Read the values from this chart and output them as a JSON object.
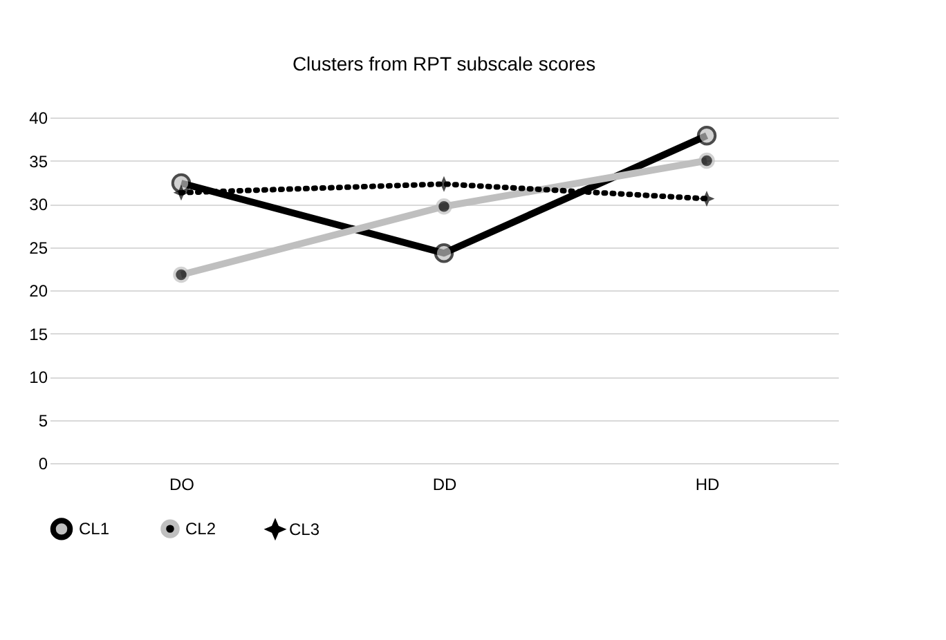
{
  "chart_data": {
    "type": "line",
    "title": "Clusters from RPT subscale scores",
    "categories": [
      "DO",
      "DD",
      "HD"
    ],
    "series": [
      {
        "name": "CL1",
        "color": "#000000",
        "values": [
          32.4,
          24.3,
          37.9
        ],
        "marker": "circle",
        "line_style": "solid"
      },
      {
        "name": "CL2",
        "color": "#bfbfbf",
        "values": [
          21.8,
          29.7,
          35.0
        ],
        "marker": "circle",
        "line_style": "solid"
      },
      {
        "name": "CL3",
        "color": "#000000",
        "values": [
          31.3,
          32.3,
          30.6
        ],
        "marker": "star",
        "line_style": "dotted"
      }
    ],
    "ylim": [
      0,
      40
    ],
    "yticks": [
      0,
      5,
      10,
      15,
      20,
      25,
      30,
      35,
      40
    ],
    "grid": "y",
    "legend": "bottom"
  }
}
